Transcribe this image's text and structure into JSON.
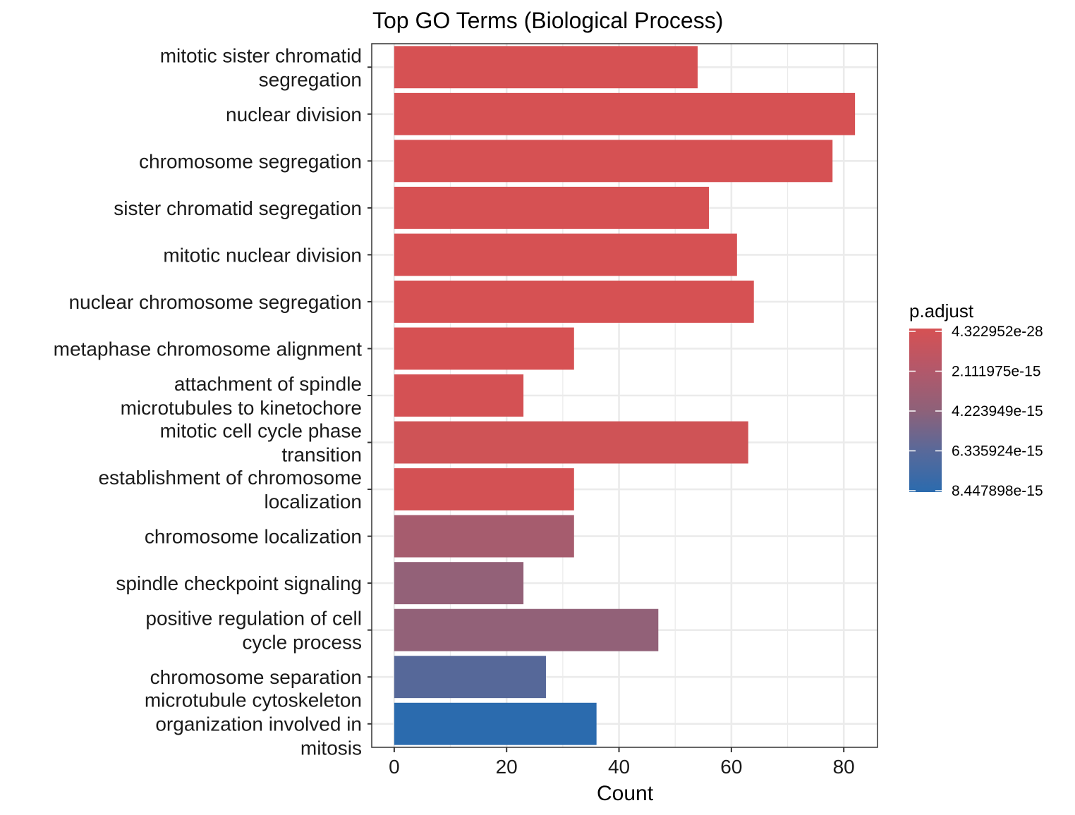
{
  "chart_data": {
    "type": "bar",
    "orientation": "horizontal",
    "title": "Top GO Terms (Biological Process)",
    "xlabel": "Count",
    "ylabel": "",
    "xlim": [
      -4,
      86
    ],
    "x_ticks": [
      0,
      20,
      40,
      60,
      80
    ],
    "grid": true,
    "categories": [
      "mitotic sister chromatid segregation",
      "nuclear division",
      "chromosome segregation",
      "sister chromatid segregation",
      "mitotic nuclear division",
      "nuclear chromosome segregation",
      "metaphase chromosome alignment",
      "attachment of spindle microtubules to kinetochore",
      "mitotic cell cycle phase transition",
      "establishment of chromosome localization",
      "chromosome localization",
      "spindle checkpoint signaling",
      "positive regulation of cell cycle process",
      "chromosome separation",
      "microtubule cytoskeleton organization involved in mitosis"
    ],
    "category_lines": [
      [
        "mitotic sister chromatid",
        "segregation"
      ],
      [
        "nuclear division"
      ],
      [
        "chromosome segregation"
      ],
      [
        "sister chromatid segregation"
      ],
      [
        "mitotic nuclear division"
      ],
      [
        "nuclear chromosome segregation"
      ],
      [
        "metaphase chromosome alignment"
      ],
      [
        "attachment of spindle",
        "microtubules to kinetochore"
      ],
      [
        "mitotic cell cycle phase",
        "transition"
      ],
      [
        "establishment of chromosome",
        "localization"
      ],
      [
        "chromosome localization"
      ],
      [
        "spindle checkpoint signaling"
      ],
      [
        "positive regulation of cell",
        "cycle process"
      ],
      [
        "chromosome separation"
      ],
      [
        "microtubule cytoskeleton",
        "organization involved in",
        "mitosis"
      ]
    ],
    "values": [
      54,
      82,
      78,
      56,
      61,
      64,
      32,
      23,
      63,
      32,
      32,
      23,
      47,
      27,
      36
    ],
    "bar_colors": [
      "#d65153",
      "#d65153",
      "#d65153",
      "#d65153",
      "#d65153",
      "#d65153",
      "#d65153",
      "#d45154",
      "#cf5356",
      "#d35154",
      "#a65c6e",
      "#936178",
      "#926178",
      "#566899",
      "#2b6bae"
    ],
    "legend": {
      "title": "p.adjust",
      "placement": "right",
      "labels": [
        "4.322952e-28",
        "2.111975e-15",
        "4.223949e-15",
        "6.335924e-15",
        "8.447898e-15"
      ],
      "gradient_colors": [
        "#d65153",
        "#b3586a",
        "#8e6179",
        "#58699a",
        "#2b6bae"
      ]
    }
  }
}
